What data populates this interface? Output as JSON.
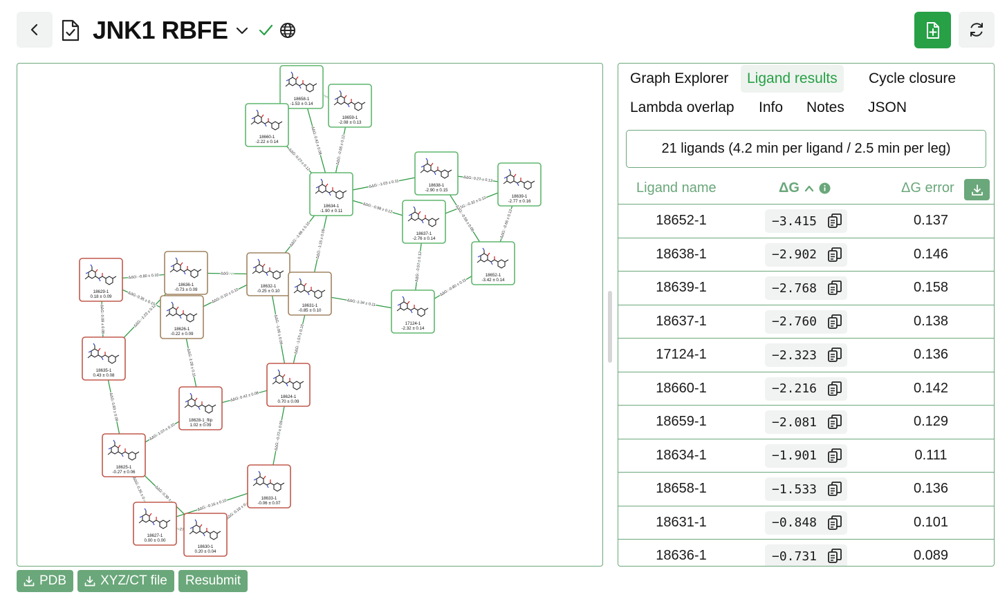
{
  "header": {
    "title": "JNK1 RBFE"
  },
  "colors": {
    "accent": "#27a046",
    "border_green": "#6aa77a",
    "node_green": "#5fb56d",
    "node_red": "#c0584b",
    "node_brown": "#a08460"
  },
  "tabs": [
    {
      "label": "Graph Explorer",
      "active": false
    },
    {
      "label": "Ligand results",
      "active": true
    },
    {
      "label": "Cycle closure",
      "active": false
    },
    {
      "label": "Lambda overlap",
      "active": false
    },
    {
      "label": "Info",
      "active": false
    },
    {
      "label": "Notes",
      "active": false
    },
    {
      "label": "JSON",
      "active": false
    }
  ],
  "summary": "21 ligands (4.2 min per ligand / 2.5 min per leg)",
  "table": {
    "col_name": "Ligand name",
    "col_dg": "ΔG",
    "col_err": "ΔG error",
    "sort": "ascending",
    "rows": [
      {
        "name": "18652-1",
        "dg": "−3.415",
        "err": "0.137"
      },
      {
        "name": "18638-1",
        "dg": "−2.902",
        "err": "0.146"
      },
      {
        "name": "18639-1",
        "dg": "−2.768",
        "err": "0.158"
      },
      {
        "name": "18637-1",
        "dg": "−2.760",
        "err": "0.138"
      },
      {
        "name": "17124-1",
        "dg": "−2.323",
        "err": "0.136"
      },
      {
        "name": "18660-1",
        "dg": "−2.216",
        "err": "0.142"
      },
      {
        "name": "18659-1",
        "dg": "−2.081",
        "err": "0.129"
      },
      {
        "name": "18634-1",
        "dg": "−1.901",
        "err": "0.111"
      },
      {
        "name": "18658-1",
        "dg": "−1.533",
        "err": "0.136"
      },
      {
        "name": "18631-1",
        "dg": "−0.848",
        "err": "0.101"
      },
      {
        "name": "18636-1",
        "dg": "−0.731",
        "err": "0.089"
      }
    ]
  },
  "buttons": {
    "pdb": "PDB",
    "xyz": "XYZ/CT file",
    "resubmit": "Resubmit"
  },
  "graph": {
    "nodes": [
      {
        "id": "18658-1",
        "label": "18658-1",
        "value": "-1.53 ± 0.14",
        "status": "green"
      },
      {
        "id": "18659-1",
        "label": "18659-1",
        "value": "-2.08 ± 0.13",
        "status": "green"
      },
      {
        "id": "18660-1",
        "label": "18660-1",
        "value": "-2.22 ± 0.14",
        "status": "green"
      },
      {
        "id": "18634-1",
        "label": "18634-1",
        "value": "-1.90 ± 0.11",
        "status": "green"
      },
      {
        "id": "18638-1",
        "label": "18638-1",
        "value": "-2.90 ± 0.15",
        "status": "green"
      },
      {
        "id": "18639-1",
        "label": "18639-1",
        "value": "-2.77 ± 0.16",
        "status": "green"
      },
      {
        "id": "18637-1",
        "label": "18637-1",
        "value": "-2.76 ± 0.14",
        "status": "green"
      },
      {
        "id": "18652-1",
        "label": "18652-1",
        "value": "-3.42 ± 0.14",
        "status": "green"
      },
      {
        "id": "17124-1",
        "label": "17124-1",
        "value": "-2.32 ± 0.14",
        "status": "green"
      },
      {
        "id": "18629-1",
        "label": "18629-1",
        "value": "0.18 ± 0.09",
        "status": "red"
      },
      {
        "id": "18636-1",
        "label": "18636-1",
        "value": "-0.73 ± 0.09",
        "status": "brown"
      },
      {
        "id": "18632-1",
        "label": "18632-1",
        "value": "-0.25 ± 0.10",
        "status": "brown"
      },
      {
        "id": "18631-1",
        "label": "18631-1",
        "value": "-0.85 ± 0.10",
        "status": "brown"
      },
      {
        "id": "18626-1",
        "label": "18626-1",
        "value": "-0.22 ± 0.09",
        "status": "brown"
      },
      {
        "id": "18635-1",
        "label": "18635-1",
        "value": "0.43 ± 0.08",
        "status": "red"
      },
      {
        "id": "18624-1",
        "label": "18624-1",
        "value": "0.70 ± 0.09",
        "status": "red"
      },
      {
        "id": "18628-1_flip",
        "label": "18628-1_flip",
        "value": "1.02 ± 0.09",
        "status": "red"
      },
      {
        "id": "18625-1",
        "label": "18625-1",
        "value": "-0.27 ± 0.06",
        "status": "red"
      },
      {
        "id": "18633-1",
        "label": "18633-1",
        "value": "-0.06 ± 0.07",
        "status": "red"
      },
      {
        "id": "18627-1",
        "label": "18627-1",
        "value": "0.00 ± 0.00",
        "status": "red"
      },
      {
        "id": "18630-1",
        "label": "18630-1",
        "value": "0.20 ± 0.04",
        "status": "red"
      }
    ],
    "edges": [
      {
        "a": "18658-1",
        "b": "18634-1",
        "label": "ΔΔG: 0.42 ± 0.08"
      },
      {
        "a": "18659-1",
        "b": "18634-1",
        "label": "ΔΔG: -0.65 ± 0.12"
      },
      {
        "a": "18660-1",
        "b": "18634-1",
        "label": "ΔΔG: 0.27 ± 0.12"
      },
      {
        "a": "18658-1",
        "b": "18659-1",
        "label": "ΔΔG: ... 0.12"
      },
      {
        "a": "18658-1",
        "b": "18660-1",
        "label": "ΔΔG: ..."
      },
      {
        "a": "18634-1",
        "b": "18638-1",
        "label": "ΔΔG: -1.03 ± 0.11"
      },
      {
        "a": "18634-1",
        "b": "18637-1",
        "label": "ΔΔG: -0.98 ± 0.12"
      },
      {
        "a": "18638-1",
        "b": "18639-1",
        "label": "ΔΔG: 0.27 ± 0.13"
      },
      {
        "a": "18637-1",
        "b": "18639-1",
        "label": "ΔΔG: -0.32 ± 0.13"
      },
      {
        "a": "18638-1",
        "b": "18652-1",
        "label": "ΔΔG: -0.59 ± 0.08"
      },
      {
        "a": "18639-1",
        "b": "18652-1",
        "label": "ΔΔG: -0.66 ± 0.12"
      },
      {
        "a": "18637-1",
        "b": "17124-1",
        "label": "ΔΔG: -0.57 ± 0.12"
      },
      {
        "a": "17124-1",
        "b": "18652-1",
        "label": "ΔΔG: -0.80 ± 0.11"
      },
      {
        "a": "18631-1",
        "b": "17124-1",
        "label": "ΔΔG: 1.34 ± 0.11"
      },
      {
        "a": "18632-1",
        "b": "18634-1",
        "label": "ΔΔG: -1.66 ± 0.10"
      },
      {
        "a": "18631-1",
        "b": "18634-1",
        "label": "ΔΔG: -1.15 ± 0.09"
      },
      {
        "a": "18629-1",
        "b": "18636-1",
        "label": "ΔΔG: -0.80 ± 0.10"
      },
      {
        "a": "18636-1",
        "b": "18632-1",
        "label": "ΔΔG: ..."
      },
      {
        "a": "18626-1",
        "b": "18632-1",
        "label": "ΔΔG: 0.10 ± 0.10"
      },
      {
        "a": "18629-1",
        "b": "18626-1",
        "label": "ΔΔG: 0.35 ± 0.10"
      },
      {
        "a": "18636-1",
        "b": "18635-1",
        "label": "ΔΔG: -1.23 ± 0.12"
      },
      {
        "a": "18629-1",
        "b": "18635-1",
        "label": "ΔΔG: 0.08 ± 0.08"
      },
      {
        "a": "18626-1",
        "b": "18628-1_flip",
        "label": "ΔΔG: 1.28 ± 0.11"
      },
      {
        "a": "18632-1",
        "b": "18624-1",
        "label": "ΔΔG: -1.06 ± 0.09"
      },
      {
        "a": "18631-1",
        "b": "18624-1",
        "label": "ΔΔG: -1.57 ± 0.10"
      },
      {
        "a": "18628-1_flip",
        "b": "18624-1",
        "label": "ΔΔG: 0.42 ± 0.08"
      },
      {
        "a": "18635-1",
        "b": "18625-1",
        "label": "ΔΔG: 0.83 ± 0.09"
      },
      {
        "a": "18628-1_flip",
        "b": "18625-1",
        "label": "ΔΔG: 1.07 ± 0.10"
      },
      {
        "a": "18624-1",
        "b": "18633-1",
        "label": "ΔΔG: -0.77 ± 0.09"
      },
      {
        "a": "18625-1",
        "b": "18627-1",
        "label": "ΔΔG: 0.35 ± 0..."
      },
      {
        "a": "18625-1",
        "b": "18630-1",
        "label": "ΔΔG: 0.39 ± ..."
      },
      {
        "a": "18627-1",
        "b": "18633-1",
        "label": "ΔΔG: -0.16 ± 0.10"
      },
      {
        "a": "18630-1",
        "b": "18633-1",
        "label": "ΔΔG: 0.18 ± 0..."
      },
      {
        "a": "18627-1",
        "b": "18630-1",
        "label": "...27"
      }
    ]
  }
}
